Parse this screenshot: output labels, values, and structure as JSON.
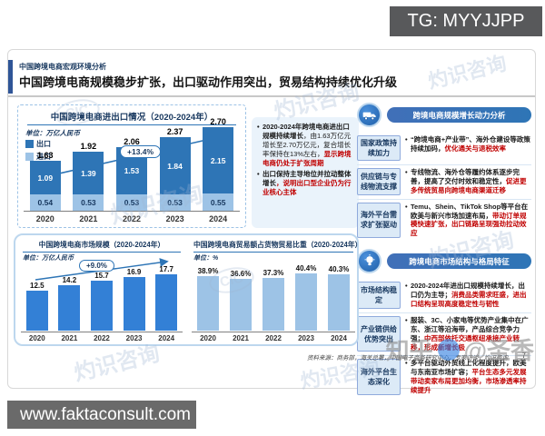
{
  "overlay": {
    "tg_badge": "TG: MYYJJPP",
    "site_badge": "www.faktaconsult.com",
    "watermark_brand": "灼识咨询",
    "watermark_cic": "CIC",
    "watermark_social_prefix": "知乎",
    "watermark_social_handle": "@圣香"
  },
  "header": {
    "kicker": "中国跨境电商宏观环境分析",
    "title": "中国跨境电商规模稳步扩张，出口驱动作用突出，贸易结构持续优化升级"
  },
  "chart_data": [
    {
      "type": "bar",
      "subtype": "stacked",
      "title": "中国跨境电商进出口情况（2020-2024年）",
      "unit": "单位：万亿人民币",
      "categories": [
        "2020",
        "2021",
        "2022",
        "2023",
        "2024"
      ],
      "series": [
        {
          "name": "出口",
          "color": "#2E75B6",
          "values": [
            1.09,
            1.39,
            1.53,
            1.84,
            2.15
          ],
          "value_labels": [
            "1.09",
            "1.39",
            "1.53",
            "1.84",
            "2.15"
          ]
        },
        {
          "name": "进口",
          "color": "#9DC3E6",
          "values": [
            0.54,
            0.53,
            0.53,
            0.53,
            0.55
          ],
          "value_labels": [
            "0.54",
            "0.53",
            "0.53",
            "0.53",
            "0.55"
          ]
        }
      ],
      "totals": [
        1.63,
        1.92,
        2.06,
        2.37,
        2.7
      ],
      "total_labels": [
        "1.63",
        "1.92",
        "2.06",
        "2.37",
        "2.70"
      ],
      "cagr_label": "+13.4%",
      "legend_position": "top-left",
      "ylim": [
        0,
        3
      ]
    },
    {
      "type": "bar",
      "title": "中国跨境电商市场规模（2020-2024年）",
      "unit": "单位：万亿人民币",
      "categories": [
        "2020",
        "2021",
        "2022",
        "2023",
        "2024"
      ],
      "values": [
        12.5,
        14.2,
        15.7,
        16.9,
        17.7
      ],
      "value_labels": [
        "12.5",
        "14.2",
        "15.7",
        "16.9",
        "17.7"
      ],
      "cagr_label": "+9.0%",
      "color": "#3380D6",
      "ylim": [
        0,
        20
      ]
    },
    {
      "type": "bar",
      "title": "中国跨境电商贸易额占货物贸易比重（2020-2024年）",
      "unit": "单位：%",
      "categories": [
        "2020",
        "2021",
        "2022",
        "2023",
        "2024"
      ],
      "values": [
        38.9,
        36.6,
        37.3,
        40.4,
        40.3
      ],
      "value_labels": [
        "38.9%",
        "36.6%",
        "37.3%",
        "40.4%",
        "40.3%"
      ],
      "color": "#9DC3E6",
      "ylim": [
        0,
        45
      ]
    }
  ],
  "note_box": {
    "bullets": [
      [
        {
          "t": "2020-2024年跨境电商进出口规模持续增长",
          "s": "b"
        },
        {
          "t": "，由1.63万亿元增长至2.70万亿元，复合增长率保持在13%左右，",
          "s": "n"
        },
        {
          "t": "显示跨境电商仍处于扩张周期",
          "s": "r"
        }
      ],
      [
        {
          "t": "出口保持主导地位并拉动整体增长",
          "s": "b"
        },
        {
          "t": "，说明出口型企业仍为行业核心主体",
          "s": "r"
        }
      ]
    ]
  },
  "right_panel": {
    "sections": [
      {
        "icon": "truck-icon",
        "header": "跨境电商规模增长动力分析",
        "rows": [
          {
            "label": "国家政策持续加力",
            "segments": [
              {
                "t": "“跨境电商+产业带”、海外仓建设等政策持续加码，",
                "s": "b"
              },
              {
                "t": "优化通关与退税效率",
                "s": "r"
              }
            ]
          },
          {
            "label": "供应链与专线物流支撑",
            "segments": [
              {
                "t": "专线物流、海外仓等履约体系逐步完善，提高了交付时效和稳定性，",
                "s": "b"
              },
              {
                "t": "促进更多传统贸易向跨境电商渠道迁移",
                "s": "r"
              }
            ]
          },
          {
            "label": "海外平台需求扩张驱动",
            "segments": [
              {
                "t": "Temu、Shein、TikTok Shop等平台在欧美与新兴市场加速布局，",
                "s": "b"
              },
              {
                "t": "带动订单规模快速扩张，出口链路呈现强劲拉动效应",
                "s": "r"
              }
            ]
          }
        ]
      },
      {
        "icon": "bulb-icon",
        "header": "跨境电商市场结构与格局特征",
        "rows": [
          {
            "label": "市场结构稳定",
            "segments": [
              {
                "t": "2020-2024年进出口规模持续增长，出口仍为主导；",
                "s": "b"
              },
              {
                "t": "消费品类需求旺盛，进出口结构呈现高度稳定性与韧性",
                "s": "r"
              }
            ]
          },
          {
            "label": "产业链供给优势突出",
            "segments": [
              {
                "t": "服装、3C、小家电等优势产业集中在广东、浙江等沿海带，产品综合竞争力强；",
                "s": "b"
              },
              {
                "t": "中西部依托交通枢纽承接产业转移，形成新增长极",
                "s": "r"
              }
            ]
          },
          {
            "label": "海外平台生态深化",
            "segments": [
              {
                "t": "多平台驱动外贸线上化程度提升，欧美与东南亚市场扩容；",
                "s": "b"
              },
              {
                "t": "平台生态多元发展带动卖家布局更加均衡，市场渗透率持续提升",
                "s": "r"
              }
            ]
          }
        ]
      }
    ]
  },
  "footer": {
    "source": "资料来源：商务部，海关总署，中国电子商务研究中心，专家访谈，灼识咨询",
    "page": "7"
  }
}
